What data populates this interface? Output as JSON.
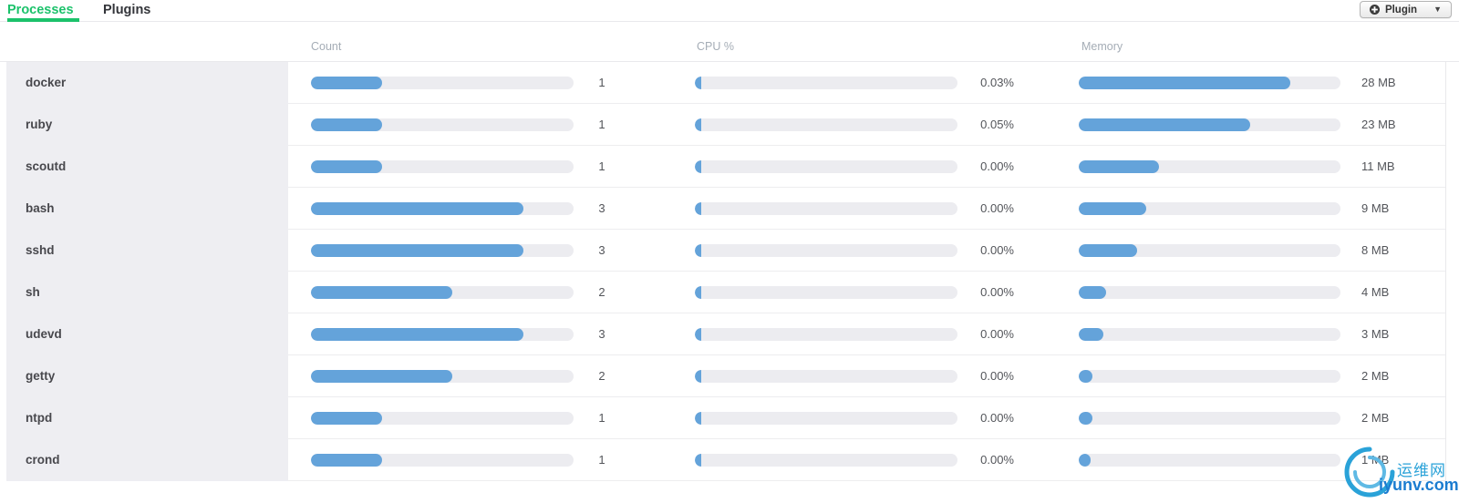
{
  "header": {
    "tabs": [
      {
        "label": "Processes",
        "active": true
      },
      {
        "label": "Plugins",
        "active": false
      }
    ],
    "plugin_button": {
      "label": "Plugin",
      "caret": "▼"
    }
  },
  "table": {
    "columns": [
      {
        "key": "count",
        "label": "Count"
      },
      {
        "key": "cpu",
        "label": "CPU %"
      },
      {
        "key": "memory",
        "label": "Memory"
      }
    ],
    "rows": [
      {
        "name": "docker",
        "count": "1",
        "count_pct": 27.1,
        "cpu": "0.03%",
        "cpu_pct": 2.4,
        "memory": "28 MB",
        "memory_pct": 80.7
      },
      {
        "name": "ruby",
        "count": "1",
        "count_pct": 27.1,
        "cpu": "0.05%",
        "cpu_pct": 2.4,
        "memory": "23 MB",
        "memory_pct": 65.4
      },
      {
        "name": "scoutd",
        "count": "1",
        "count_pct": 27.1,
        "cpu": "0.00%",
        "cpu_pct": 2.4,
        "memory": "11 MB",
        "memory_pct": 30.8
      },
      {
        "name": "bash",
        "count": "3",
        "count_pct": 80.9,
        "cpu": "0.00%",
        "cpu_pct": 2.4,
        "memory": "9 MB",
        "memory_pct": 25.9
      },
      {
        "name": "sshd",
        "count": "3",
        "count_pct": 80.9,
        "cpu": "0.00%",
        "cpu_pct": 2.4,
        "memory": "8 MB",
        "memory_pct": 22.2
      },
      {
        "name": "sh",
        "count": "2",
        "count_pct": 53.8,
        "cpu": "0.00%",
        "cpu_pct": 2.4,
        "memory": "4 MB",
        "memory_pct": 10.5
      },
      {
        "name": "udevd",
        "count": "3",
        "count_pct": 80.9,
        "cpu": "0.00%",
        "cpu_pct": 2.4,
        "memory": "3 MB",
        "memory_pct": 9.3
      },
      {
        "name": "getty",
        "count": "2",
        "count_pct": 53.8,
        "cpu": "0.00%",
        "cpu_pct": 2.4,
        "memory": "2 MB",
        "memory_pct": 5.2
      },
      {
        "name": "ntpd",
        "count": "1",
        "count_pct": 27.1,
        "cpu": "0.00%",
        "cpu_pct": 2.4,
        "memory": "2 MB",
        "memory_pct": 5.2
      },
      {
        "name": "crond",
        "count": "1",
        "count_pct": 27.1,
        "cpu": "0.00%",
        "cpu_pct": 2.4,
        "memory": "1 MB",
        "memory_pct": 4.6
      }
    ]
  },
  "colors": {
    "accent_green": "#1cc26b",
    "bar_blue": "#64a3da",
    "bar_track": "#ececf0",
    "panel_gray": "#eeeef2"
  },
  "watermark": {
    "line1": "运维网",
    "line2": "iyunv.com",
    "color1": "#2aa2d8",
    "color2": "#1b7cd0"
  }
}
